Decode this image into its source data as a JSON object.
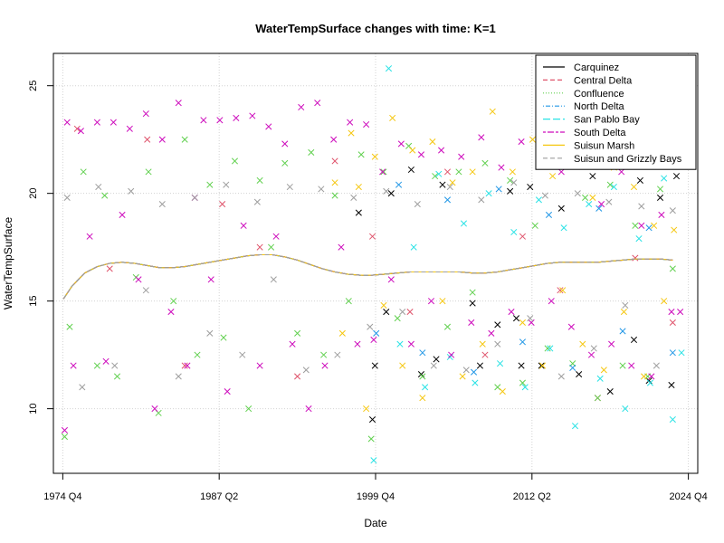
{
  "chart_data": {
    "type": "scatter",
    "title": "WaterTempSurface changes with time: K=1",
    "xlabel": "Date",
    "ylabel": "WaterTempSurface",
    "x_ticks": [
      "1974 Q4",
      "1987 Q2",
      "1999 Q4",
      "2012 Q2",
      "2024 Q4"
    ],
    "x_tick_values": [
      1974.75,
      1987.25,
      1999.75,
      2012.25,
      2024.75
    ],
    "y_ticks": [
      "10",
      "15",
      "20",
      "25"
    ],
    "y_tick_values": [
      10,
      15,
      20,
      25
    ],
    "xlim": [
      1974.0,
      2025.5
    ],
    "ylim": [
      7.0,
      26.5
    ],
    "grid": true,
    "legend_position": "top-right",
    "smooth_curve": {
      "x": [
        1974.8,
        1975.5,
        1976.5,
        1977.5,
        1978.5,
        1979.5,
        1980.5,
        1981.5,
        1982.5,
        1983.5,
        1984.5,
        1985.5,
        1986.5,
        1987.5,
        1988.5,
        1989.5,
        1990.5,
        1991.5,
        1992.5,
        1993.5,
        1994.5,
        1995.5,
        1996.5,
        1997.5,
        1998.5,
        1999.5,
        2000.5,
        2001.5,
        2002.5,
        2003.5,
        2004.5,
        2005.5,
        2006.5,
        2007.5,
        2008.5,
        2009.5,
        2010.5,
        2011.5,
        2012.5,
        2013.5,
        2014.5,
        2015.5,
        2016.5,
        2017.5,
        2018.5,
        2019.5,
        2020.5,
        2021.5,
        2022.5,
        2023.5
      ],
      "y": [
        15.1,
        15.7,
        16.3,
        16.6,
        16.75,
        16.8,
        16.75,
        16.65,
        16.55,
        16.55,
        16.6,
        16.7,
        16.8,
        16.9,
        17.0,
        17.1,
        17.15,
        17.15,
        17.05,
        16.9,
        16.7,
        16.5,
        16.35,
        16.25,
        16.2,
        16.2,
        16.25,
        16.3,
        16.35,
        16.35,
        16.35,
        16.35,
        16.35,
        16.3,
        16.3,
        16.35,
        16.45,
        16.55,
        16.65,
        16.75,
        16.8,
        16.8,
        16.8,
        16.8,
        16.85,
        16.9,
        16.95,
        16.95,
        16.95,
        16.9
      ]
    },
    "series": [
      {
        "name": "Carquinez",
        "color": "#000000",
        "line_style": "solid",
        "x": [
          1998.4,
          1999.5,
          1999.7,
          2000.6,
          2001.0,
          2002.6,
          2003.4,
          2004.6,
          2005.1,
          2007.5,
          2008.1,
          2009.5,
          2010.5,
          2011.0,
          2011.4,
          2012.1,
          2013.0,
          2014.6,
          2016.0,
          2017.1,
          2018.5,
          2019.6,
          2020.4,
          2020.9,
          2021.6,
          2022.5,
          2023.4,
          2023.8
        ],
        "y": [
          19.1,
          9.5,
          12.0,
          14.5,
          20.0,
          21.1,
          11.6,
          12.3,
          20.4,
          14.9,
          12.0,
          13.9,
          20.1,
          14.2,
          12.0,
          20.3,
          12.0,
          19.3,
          11.6,
          20.8,
          10.8,
          21.5,
          13.2,
          20.6,
          11.3,
          19.8,
          11.1,
          20.8
        ]
      },
      {
        "name": "Central Delta",
        "color": "#df536b",
        "line_style": "dashed",
        "x": [
          1975.9,
          1978.5,
          1981.5,
          1984.5,
          1987.5,
          1990.5,
          1993.5,
          1996.5,
          1999.5,
          2002.5,
          2005.5,
          2008.5,
          2011.5,
          2014.5,
          2017.5,
          2020.5,
          2023.5
        ],
        "y": [
          23.0,
          16.5,
          22.5,
          12.0,
          19.5,
          17.5,
          11.5,
          21.5,
          18.0,
          14.5,
          21.0,
          12.5,
          18.0,
          15.5,
          10.5,
          17.0,
          14.0
        ]
      },
      {
        "name": "Confluence",
        "color": "#61d04f",
        "line_style": "dotted",
        "x": [
          1974.9,
          1975.3,
          1976.4,
          1977.5,
          1978.1,
          1979.1,
          1980.6,
          1981.6,
          1982.4,
          1983.6,
          1984.5,
          1985.5,
          1986.5,
          1987.6,
          1988.5,
          1989.6,
          1990.5,
          1991.4,
          1992.5,
          1993.5,
          1994.6,
          1995.6,
          1996.5,
          1997.6,
          1998.6,
          1999.4,
          2000.4,
          2001.5,
          2002.4,
          2003.5,
          2004.5,
          2005.5,
          2006.4,
          2007.5,
          2008.5,
          2009.5,
          2010.5,
          2011.5,
          2012.5,
          2013.5,
          2014.5,
          2015.5,
          2016.5,
          2017.5,
          2018.5,
          2019.5,
          2020.5,
          2021.5,
          2022.5,
          2023.5
        ],
        "y": [
          8.7,
          13.8,
          21.0,
          12.0,
          19.9,
          11.5,
          16.1,
          21.0,
          9.8,
          15.0,
          22.5,
          12.5,
          20.4,
          13.3,
          21.5,
          10.0,
          20.6,
          17.5,
          21.4,
          13.5,
          21.9,
          12.5,
          19.9,
          15.0,
          21.8,
          8.6,
          21.0,
          14.2,
          22.2,
          11.5,
          20.8,
          13.8,
          21.0,
          15.4,
          21.4,
          11.0,
          20.6,
          11.2,
          18.5,
          12.8,
          21.8,
          12.1,
          19.8,
          10.5,
          20.4,
          12.0,
          18.5,
          11.5,
          20.2,
          16.5
        ]
      },
      {
        "name": "North Delta",
        "color": "#2297e6",
        "line_style": "dotdash",
        "x": [
          1999.8,
          2001.6,
          2003.5,
          2005.5,
          2007.6,
          2009.6,
          2011.5,
          2013.6,
          2015.5,
          2017.6,
          2019.5,
          2021.6,
          2023.5
        ],
        "y": [
          13.5,
          20.4,
          12.6,
          19.7,
          11.7,
          20.2,
          13.1,
          19.0,
          11.9,
          19.3,
          13.6,
          18.4,
          12.6
        ]
      },
      {
        "name": "San Pablo Bay",
        "color": "#28e2e5",
        "line_style": "longdash",
        "x": [
          1999.6,
          2000.8,
          2001.7,
          2002.8,
          2003.7,
          2004.8,
          2005.7,
          2006.8,
          2007.7,
          2008.8,
          2009.7,
          2010.8,
          2011.7,
          2012.8,
          2013.7,
          2014.8,
          2015.7,
          2016.8,
          2017.7,
          2018.8,
          2019.7,
          2020.8,
          2021.7,
          2022.8,
          2023.5,
          2024.2
        ],
        "y": [
          7.6,
          25.8,
          13.0,
          17.5,
          11.0,
          20.9,
          12.4,
          18.6,
          11.2,
          20.0,
          12.1,
          18.2,
          11.0,
          19.7,
          12.8,
          18.4,
          9.2,
          19.5,
          11.4,
          20.3,
          10.0,
          17.9,
          11.2,
          20.7,
          9.5,
          12.6
        ]
      },
      {
        "name": "South Delta",
        "color": "#cd0bbc",
        "line_style": "twodash",
        "x": [
          1974.9,
          1975.1,
          1975.6,
          1976.2,
          1976.9,
          1977.5,
          1978.2,
          1978.8,
          1979.5,
          1980.1,
          1980.8,
          1981.4,
          1982.1,
          1982.7,
          1983.4,
          1984.0,
          1984.7,
          1985.3,
          1986.0,
          1986.6,
          1987.3,
          1987.9,
          1988.6,
          1989.2,
          1989.9,
          1990.5,
          1991.2,
          1991.8,
          1992.5,
          1993.1,
          1993.8,
          1994.4,
          1995.1,
          1995.7,
          1996.4,
          1997.0,
          1997.7,
          1998.3,
          1999.0,
          1999.6,
          2000.3,
          2001.0,
          2001.8,
          2002.6,
          2003.4,
          2004.2,
          2005.0,
          2005.8,
          2006.6,
          2007.4,
          2008.2,
          2009.0,
          2009.8,
          2010.6,
          2011.4,
          2012.2,
          2013.0,
          2013.8,
          2014.6,
          2015.4,
          2016.2,
          2017.0,
          2017.8,
          2018.6,
          2019.4,
          2020.2,
          2021.0,
          2021.8,
          2022.6,
          2023.4,
          2024.1
        ],
        "y": [
          9.0,
          23.3,
          12.0,
          22.9,
          18.0,
          23.3,
          12.2,
          23.3,
          19.0,
          23.0,
          16.0,
          23.7,
          10.0,
          22.5,
          14.5,
          24.2,
          12.0,
          19.8,
          23.4,
          16.0,
          23.4,
          10.8,
          23.5,
          18.5,
          23.6,
          12.0,
          23.1,
          18.0,
          22.3,
          13.0,
          24.0,
          10.0,
          24.2,
          12.0,
          22.5,
          17.5,
          23.3,
          13.0,
          23.2,
          13.2,
          21.0,
          16.0,
          22.3,
          13.0,
          21.8,
          15.0,
          22.0,
          12.5,
          21.7,
          14.0,
          22.6,
          13.5,
          21.2,
          14.5,
          22.4,
          14.0,
          21.5,
          15.0,
          21.0,
          13.8,
          22.0,
          12.5,
          19.5,
          13.0,
          21.0,
          12.0,
          18.5,
          11.5,
          19.0,
          14.5,
          14.5
        ]
      },
      {
        "name": "Suisun Marsh",
        "color": "#f5c710",
        "line_style": "solid",
        "x": [
          1996.5,
          1997.1,
          1997.8,
          1998.4,
          1999.0,
          1999.7,
          2000.4,
          2001.1,
          2001.9,
          2002.7,
          2003.5,
          2004.3,
          2005.1,
          2005.9,
          2006.7,
          2007.5,
          2008.3,
          2009.1,
          2009.9,
          2010.7,
          2011.5,
          2012.3,
          2013.1,
          2013.9,
          2014.7,
          2015.5,
          2016.3,
          2017.1,
          2018.0,
          2018.8,
          2019.6,
          2020.4,
          2021.2,
          2022.0,
          2022.8,
          2023.6
        ],
        "y": [
          20.5,
          13.5,
          22.8,
          20.3,
          10.0,
          21.7,
          14.8,
          23.5,
          12.0,
          22.0,
          10.5,
          22.4,
          15.0,
          20.5,
          11.5,
          21.0,
          13.0,
          23.8,
          10.8,
          21.0,
          14.0,
          22.5,
          12.0,
          20.8,
          15.5,
          22.3,
          13.0,
          19.8,
          11.8,
          21.2,
          14.5,
          20.3,
          11.5,
          18.5,
          15.0,
          18.3
        ]
      },
      {
        "name": "Suisun and Grizzly Bays",
        "color": "#9e9e9e",
        "line_style": "dashed",
        "x": [
          1975.1,
          1976.3,
          1977.6,
          1978.9,
          1980.2,
          1981.4,
          1982.7,
          1984.0,
          1985.3,
          1986.5,
          1987.8,
          1989.1,
          1990.3,
          1991.6,
          1992.9,
          1994.2,
          1995.4,
          1996.7,
          1998.0,
          1999.3,
          2000.6,
          2001.9,
          2003.1,
          2004.4,
          2005.7,
          2007.0,
          2008.2,
          2009.5,
          2010.8,
          2012.1,
          2013.3,
          2014.6,
          2015.9,
          2017.2,
          2018.4,
          2019.7,
          2021.0,
          2022.2,
          2023.5
        ],
        "y": [
          19.8,
          11.0,
          20.3,
          12.0,
          20.1,
          15.5,
          19.5,
          11.5,
          19.8,
          13.5,
          20.4,
          12.5,
          19.6,
          16.0,
          20.3,
          11.8,
          20.2,
          12.5,
          19.8,
          13.8,
          20.1,
          14.5,
          19.5,
          12.0,
          20.3,
          11.8,
          19.7,
          13.0,
          20.5,
          14.2,
          19.9,
          11.5,
          20.0,
          12.8,
          19.6,
          14.8,
          19.4,
          12.0,
          19.2
        ]
      }
    ]
  }
}
